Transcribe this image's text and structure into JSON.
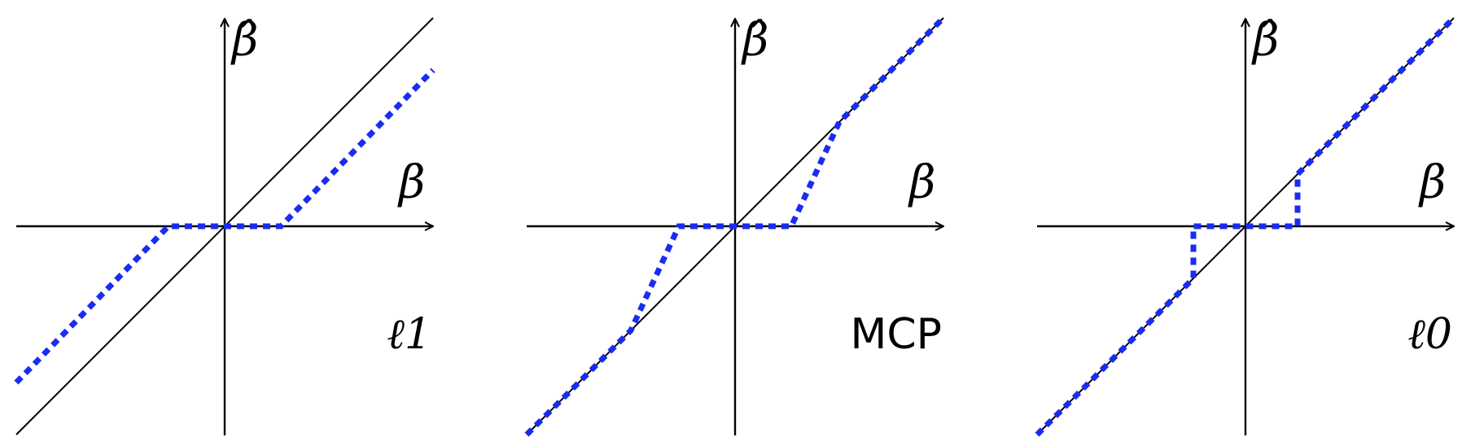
{
  "colors": {
    "threshold_curve": "#1a2cf0",
    "axes": "#000000"
  },
  "chart_data": [
    {
      "type": "line",
      "xlabel": "β",
      "ylabel": "β̂",
      "xlim": [
        -1,
        1
      ],
      "ylim": [
        -1,
        1
      ],
      "annotation": "ℓ1",
      "series": [
        {
          "style": "solid",
          "x": [
            -1,
            1
          ],
          "y": [
            -1,
            1
          ]
        },
        {
          "style": "dotted",
          "x": [
            -1,
            -0.27,
            0.27,
            1
          ],
          "y": [
            -0.75,
            0,
            0,
            0.75
          ]
        }
      ]
    },
    {
      "type": "line",
      "xlabel": "β",
      "ylabel": "β̂",
      "xlim": [
        -1,
        1
      ],
      "ylim": [
        -1,
        1
      ],
      "annotation": "MCP",
      "series": [
        {
          "style": "solid",
          "x": [
            -1,
            1
          ],
          "y": [
            -1,
            1
          ]
        },
        {
          "style": "dotted",
          "x": [
            -1,
            -0.5,
            -0.27,
            0.27,
            0.5,
            1
          ],
          "y": [
            -1,
            -0.5,
            0,
            0,
            0.5,
            1
          ]
        }
      ]
    },
    {
      "type": "line",
      "xlabel": "β",
      "ylabel": "β̂",
      "xlim": [
        -1,
        1
      ],
      "ylim": [
        -1,
        1
      ],
      "annotation": "ℓ0",
      "series": [
        {
          "style": "solid",
          "x": [
            -1,
            1
          ],
          "y": [
            -1,
            1
          ]
        },
        {
          "style": "dotted",
          "x": [
            -1,
            -0.25,
            -0.25,
            0.25,
            0.25,
            1
          ],
          "y": [
            -1,
            -0.25,
            0,
            0,
            0.25,
            1
          ]
        }
      ]
    }
  ]
}
